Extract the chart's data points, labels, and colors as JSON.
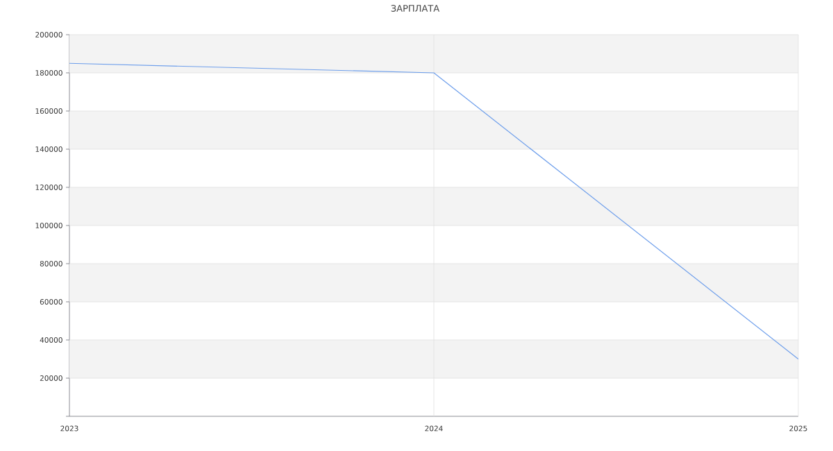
{
  "chart_data": {
    "type": "line",
    "title": "ЗАРПЛАТА",
    "x": [
      2023,
      2024,
      2025
    ],
    "series": [
      {
        "color": "#6d9eeb",
        "values": [
          185000,
          180000,
          30000
        ]
      }
    ],
    "xlim": [
      2023,
      2025
    ],
    "xticks": [
      2023,
      2024,
      2025
    ],
    "ylim": [
      0,
      200000
    ],
    "yticks": [
      {
        "value": 0,
        "label": null
      },
      20000,
      40000,
      60000,
      80000,
      100000,
      120000,
      140000,
      160000,
      180000,
      200000
    ],
    "grid": true
  }
}
